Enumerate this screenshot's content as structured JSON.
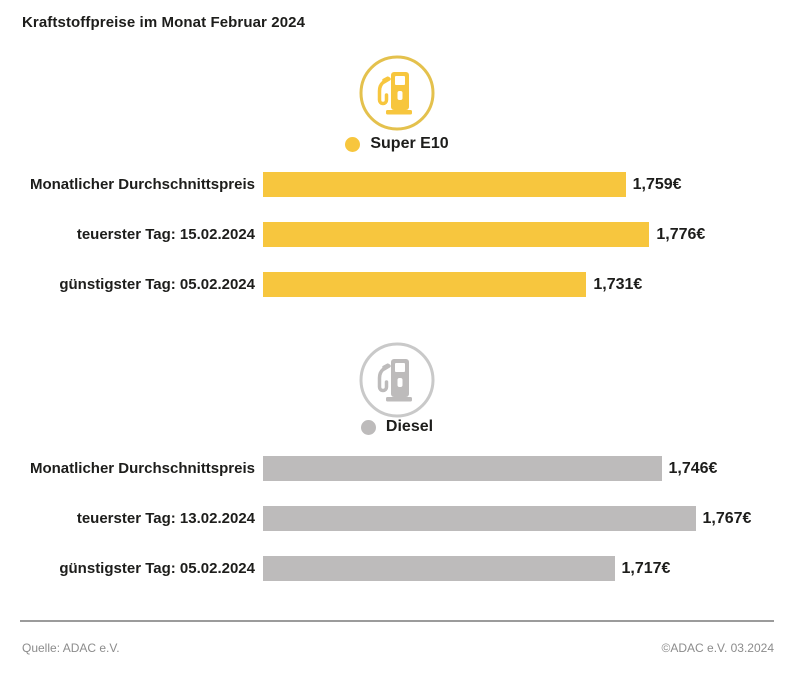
{
  "title": "Kraftstoffpreise im Monat Februar 2024",
  "footer": {
    "source_left": "Quelle: ADAC e.V.",
    "source_right": "©ADAC e.V. 03.2024"
  },
  "colors": {
    "text_dark": "#1d1d1b",
    "footer_gray": "#8c8c8c"
  },
  "chart_data": [
    {
      "type": "bar",
      "title": "Super E10",
      "icon": "fuel-pump-icon",
      "color": "#f7c63e",
      "ring_color": "#e4c14d",
      "categories": [
        "Monatlicher Durchschnittspreis",
        "teuerster Tag: 15.02.2024",
        "günstigster Tag: 05.02.2024"
      ],
      "values": [
        1.759,
        1.776,
        1.731
      ],
      "value_labels": [
        "1,759€",
        "1,776€",
        "1,731€"
      ],
      "unit": "€",
      "xlim": [
        1.5,
        1.78
      ],
      "orientation": "horizontal",
      "grid": false
    },
    {
      "type": "bar",
      "title": "Diesel",
      "icon": "fuel-pump-icon",
      "color": "#bdbbbb",
      "ring_color": "#c9c9c9",
      "categories": [
        "Monatlicher Durchschnittspreis",
        "teuerster Tag: 13.02.2024",
        "günstigster Tag: 05.02.2024"
      ],
      "values": [
        1.746,
        1.767,
        1.717
      ],
      "value_labels": [
        "1,746€",
        "1,767€",
        "1,717€"
      ],
      "unit": "€",
      "xlim": [
        1.5,
        1.77
      ],
      "orientation": "horizontal",
      "grid": false
    }
  ]
}
